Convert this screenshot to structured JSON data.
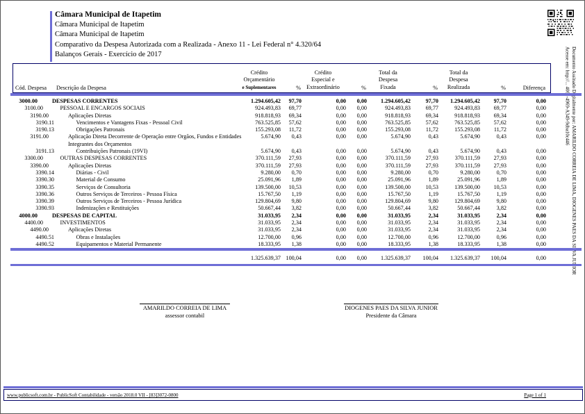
{
  "header": {
    "entity_title": "Câmara Municipal de Itapetim",
    "entity_line2": "Câmara Municipal de Itapetim",
    "entity_line3": "Câmara Municipal de Itapetim",
    "report_title": "Comparativo da Despesa Autorizada com a Realizada - Anexo 11 - Lei Federal n° 4.320/64",
    "report_period": "Balanços Gerais - Exercício de 2017"
  },
  "signed_note": {
    "line1": "Documento Assinado Digitalmente por: AMARILDO CORREIA DE LIMA, DIOGENES PAES DA SILVA JUNIOR",
    "line2": "Acesse em: http://... 4062-4969-A349-9dba10c446"
  },
  "icons": {
    "qr_code": "qr-code"
  },
  "colors": {
    "accent_line": "#6e6ed6",
    "box_border": "#000066"
  },
  "table": {
    "headers": {
      "code": "Cód. Despesa",
      "description": "Descrição da Despesa",
      "col1_l1": "Crédito",
      "col1_l2": "Orçamentário",
      "col1_l3": "e Suplementares",
      "pct": "%",
      "col2_l1": "Crédito",
      "col2_l2": "Especial e",
      "col2_l3": "Extraordinário",
      "col3_l1": "Total da",
      "col3_l2": "Despesa",
      "col3_l3": "Fixada",
      "col4_l1": "Total da",
      "col4_l2": "Despesa",
      "col4_l3": "Realizada",
      "diff": "Diferença"
    },
    "rows": [
      {
        "code": "3000.00",
        "desc": "DESPESAS CORRENTES",
        "level": 0,
        "bold": true,
        "v1": "1.294.605,42",
        "p1": "97,70",
        "v2": "0,00",
        "p2": "0,00",
        "v3": "1.294.605,42",
        "p3": "97,70",
        "v4": "1.294.605,42",
        "p4": "97,70",
        "diff": "0,00"
      },
      {
        "code": "3100.00",
        "desc": "PESSOAL E ENCARGOS SOCIAIS",
        "level": 1,
        "bold": false,
        "v1": "924.493,83",
        "p1": "69,77",
        "v2": "0,00",
        "p2": "0,00",
        "v3": "924.493,83",
        "p3": "69,77",
        "v4": "924.493,83",
        "p4": "69,77",
        "diff": "0,00"
      },
      {
        "code": "3190.00",
        "desc": "Aplicações Diretas",
        "level": 2,
        "bold": false,
        "v1": "918.818,93",
        "p1": "69,34",
        "v2": "0,00",
        "p2": "0,00",
        "v3": "918.818,93",
        "p3": "69,34",
        "v4": "918.818,93",
        "p4": "69,34",
        "diff": "0,00"
      },
      {
        "code": "3190.11",
        "desc": "Vencimentos e Vantagens Fixas - Pessoal Civil",
        "level": 3,
        "bold": false,
        "v1": "763.525,85",
        "p1": "57,62",
        "v2": "0,00",
        "p2": "0,00",
        "v3": "763.525,85",
        "p3": "57,62",
        "v4": "763.525,85",
        "p4": "57,62",
        "diff": "0,00"
      },
      {
        "code": "3190.13",
        "desc": "Obrigações Patronais",
        "level": 3,
        "bold": false,
        "v1": "155.293,08",
        "p1": "11,72",
        "v2": "0,00",
        "p2": "0,00",
        "v3": "155.293,08",
        "p3": "11,72",
        "v4": "155.293,08",
        "p4": "11,72",
        "diff": "0,00"
      },
      {
        "code": "3191.00",
        "desc": "Aplicação Direta Decorrente de Operação entre Orgãos, Fundos e Entidades",
        "desc2": "Integrantes dos Orçamentos",
        "level": 2,
        "bold": false,
        "v1": "5.674,90",
        "p1": "0,43",
        "v2": "0,00",
        "p2": "0,00",
        "v3": "5.674,90",
        "p3": "0,43",
        "v4": "5.674,90",
        "p4": "0,43",
        "diff": "0,00"
      },
      {
        "code": "3191.13",
        "desc": "Contribuições Patronais (19VI)",
        "level": 3,
        "bold": false,
        "v1": "5.674,90",
        "p1": "0,43",
        "v2": "0,00",
        "p2": "0,00",
        "v3": "5.674,90",
        "p3": "0,43",
        "v4": "5.674,90",
        "p4": "0,43",
        "diff": "0,00"
      },
      {
        "code": "3300.00",
        "desc": "OUTRAS DESPESAS CORRENTES",
        "level": 1,
        "bold": false,
        "v1": "370.111,59",
        "p1": "27,93",
        "v2": "0,00",
        "p2": "0,00",
        "v3": "370.111,59",
        "p3": "27,93",
        "v4": "370.111,59",
        "p4": "27,93",
        "diff": "0,00"
      },
      {
        "code": "3390.00",
        "desc": "Aplicações Diretas",
        "level": 2,
        "bold": false,
        "v1": "370.111,59",
        "p1": "27,93",
        "v2": "0,00",
        "p2": "0,00",
        "v3": "370.111,59",
        "p3": "27,93",
        "v4": "370.111,59",
        "p4": "27,93",
        "diff": "0,00"
      },
      {
        "code": "3390.14",
        "desc": "Diárias - Civil",
        "level": 3,
        "bold": false,
        "v1": "9.280,00",
        "p1": "0,70",
        "v2": "0,00",
        "p2": "0,00",
        "v3": "9.280,00",
        "p3": "0,70",
        "v4": "9.280,00",
        "p4": "0,70",
        "diff": "0,00"
      },
      {
        "code": "3390.30",
        "desc": "Material de Consumo",
        "level": 3,
        "bold": false,
        "v1": "25.091,96",
        "p1": "1,89",
        "v2": "0,00",
        "p2": "0,00",
        "v3": "25.091,96",
        "p3": "1,89",
        "v4": "25.091,96",
        "p4": "1,89",
        "diff": "0,00"
      },
      {
        "code": "3390.35",
        "desc": "Serviços de Consultoria",
        "level": 3,
        "bold": false,
        "v1": "139.500,00",
        "p1": "10,53",
        "v2": "0,00",
        "p2": "0,00",
        "v3": "139.500,00",
        "p3": "10,53",
        "v4": "139.500,00",
        "p4": "10,53",
        "diff": "0,00"
      },
      {
        "code": "3390.36",
        "desc": "Outros Serviços de Terceiros - Pessoa Física",
        "level": 3,
        "bold": false,
        "v1": "15.767,50",
        "p1": "1,19",
        "v2": "0,00",
        "p2": "0,00",
        "v3": "15.767,50",
        "p3": "1,19",
        "v4": "15.767,50",
        "p4": "1,19",
        "diff": "0,00"
      },
      {
        "code": "3390.39",
        "desc": "Outros Serviços de Terceiros - Pessoa Jurídica",
        "level": 3,
        "bold": false,
        "v1": "129.804,69",
        "p1": "9,80",
        "v2": "0,00",
        "p2": "0,00",
        "v3": "129.804,69",
        "p3": "9,80",
        "v4": "129.804,69",
        "p4": "9,80",
        "diff": "0,00"
      },
      {
        "code": "3390.93",
        "desc": "Indenizações e Restituições",
        "level": 3,
        "bold": false,
        "v1": "50.667,44",
        "p1": "3,82",
        "v2": "0,00",
        "p2": "0,00",
        "v3": "50.667,44",
        "p3": "3,82",
        "v4": "50.667,44",
        "p4": "3,82",
        "diff": "0,00"
      },
      {
        "code": "4000.00",
        "desc": "DESPESAS DE CAPITAL",
        "level": 0,
        "bold": true,
        "v1": "31.033,95",
        "p1": "2,34",
        "v2": "0,00",
        "p2": "0,00",
        "v3": "31.033,95",
        "p3": "2,34",
        "v4": "31.033,95",
        "p4": "2,34",
        "diff": "0,00"
      },
      {
        "code": "4400.00",
        "desc": "INVESTIMENTOS",
        "level": 1,
        "bold": false,
        "v1": "31.033,95",
        "p1": "2,34",
        "v2": "0,00",
        "p2": "0,00",
        "v3": "31.033,95",
        "p3": "2,34",
        "v4": "31.033,95",
        "p4": "2,34",
        "diff": "0,00"
      },
      {
        "code": "4490.00",
        "desc": "Aplicações Diretas",
        "level": 2,
        "bold": false,
        "v1": "31.033,95",
        "p1": "2,34",
        "v2": "0,00",
        "p2": "0,00",
        "v3": "31.033,95",
        "p3": "2,34",
        "v4": "31.033,95",
        "p4": "2,34",
        "diff": "0,00"
      },
      {
        "code": "4490.51",
        "desc": "Obras e Instalações",
        "level": 3,
        "bold": false,
        "v1": "12.700,00",
        "p1": "0,96",
        "v2": "0,00",
        "p2": "0,00",
        "v3": "12.700,00",
        "p3": "0,96",
        "v4": "12.700,00",
        "p4": "0,96",
        "diff": "0,00"
      },
      {
        "code": "4490.52",
        "desc": "Equipamentos e Material Permanente",
        "level": 3,
        "bold": false,
        "v1": "18.333,95",
        "p1": "1,38",
        "v2": "0,00",
        "p2": "0,00",
        "v3": "18.333,95",
        "p3": "1,38",
        "v4": "18.333,95",
        "p4": "1,38",
        "diff": "0,00"
      }
    ],
    "total": {
      "v1": "1.325.639,37",
      "p1": "100,04",
      "v2": "0,00",
      "p2": "0,00",
      "v3": "1.325.639,37",
      "p3": "100,04",
      "v4": "1.325.639,37",
      "p4": "100,04",
      "diff": "0,00"
    }
  },
  "signatures": [
    {
      "name": "AMARILDO CORREIA DE LIMA",
      "role": "assessor contabil"
    },
    {
      "name": "DIOGENES PAES DA SILVA JUNIOR",
      "role": "Presidente da Câmara"
    }
  ],
  "footer": {
    "left": "www.publicsoft.com.br - PublicSoft Contabilidade - versão 2018.0 VII - [83]3072-0800",
    "right": "Page 1 of 1"
  }
}
